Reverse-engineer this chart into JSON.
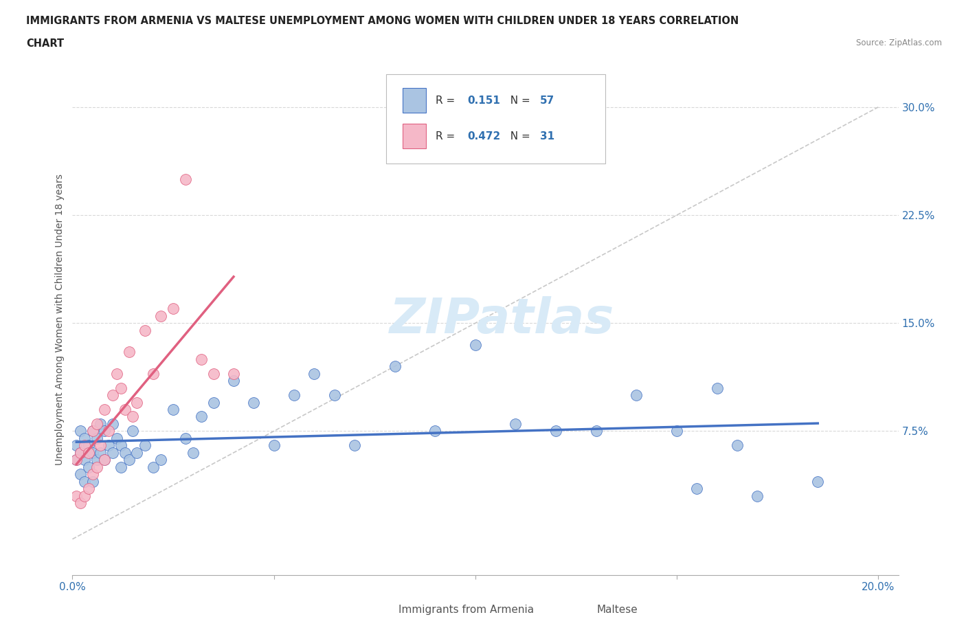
{
  "title_line1": "IMMIGRANTS FROM ARMENIA VS MALTESE UNEMPLOYMENT AMONG WOMEN WITH CHILDREN UNDER 18 YEARS CORRELATION",
  "title_line2": "CHART",
  "source": "Source: ZipAtlas.com",
  "ylabel": "Unemployment Among Women with Children Under 18 years",
  "r_armenia": 0.151,
  "n_armenia": 57,
  "r_maltese": 0.472,
  "n_maltese": 31,
  "color_armenia": "#aac4e2",
  "color_armenia_line": "#4472c4",
  "color_maltese": "#f5b8c8",
  "color_maltese_line": "#e06080",
  "ytick_values": [
    0.0,
    0.075,
    0.15,
    0.225,
    0.3
  ],
  "ytick_labels": [
    "",
    "7.5%",
    "15.0%",
    "22.5%",
    "30.0%"
  ],
  "xtick_values": [
    0.0,
    0.05,
    0.1,
    0.15,
    0.2
  ],
  "xtick_labels": [
    "0.0%",
    "",
    "",
    "",
    "20.0%"
  ],
  "xlim": [
    0.0,
    0.205
  ],
  "ylim": [
    -0.025,
    0.33
  ],
  "armenia_x": [
    0.001,
    0.001,
    0.002,
    0.002,
    0.002,
    0.003,
    0.003,
    0.003,
    0.004,
    0.004,
    0.005,
    0.005,
    0.005,
    0.006,
    0.006,
    0.007,
    0.007,
    0.008,
    0.008,
    0.009,
    0.01,
    0.01,
    0.011,
    0.012,
    0.012,
    0.013,
    0.014,
    0.015,
    0.016,
    0.018,
    0.02,
    0.022,
    0.025,
    0.028,
    0.03,
    0.032,
    0.035,
    0.04,
    0.045,
    0.05,
    0.055,
    0.06,
    0.065,
    0.07,
    0.08,
    0.09,
    0.1,
    0.11,
    0.12,
    0.13,
    0.14,
    0.15,
    0.155,
    0.16,
    0.165,
    0.17,
    0.185
  ],
  "armenia_y": [
    0.065,
    0.055,
    0.075,
    0.06,
    0.045,
    0.07,
    0.055,
    0.04,
    0.065,
    0.05,
    0.075,
    0.06,
    0.04,
    0.07,
    0.055,
    0.08,
    0.06,
    0.075,
    0.055,
    0.065,
    0.08,
    0.06,
    0.07,
    0.065,
    0.05,
    0.06,
    0.055,
    0.075,
    0.06,
    0.065,
    0.05,
    0.055,
    0.09,
    0.07,
    0.06,
    0.085,
    0.095,
    0.11,
    0.095,
    0.065,
    0.1,
    0.115,
    0.1,
    0.065,
    0.12,
    0.075,
    0.135,
    0.08,
    0.075,
    0.075,
    0.1,
    0.075,
    0.035,
    0.105,
    0.065,
    0.03,
    0.04
  ],
  "maltese_x": [
    0.001,
    0.001,
    0.002,
    0.002,
    0.003,
    0.003,
    0.004,
    0.004,
    0.005,
    0.005,
    0.006,
    0.006,
    0.007,
    0.008,
    0.008,
    0.009,
    0.01,
    0.011,
    0.012,
    0.013,
    0.014,
    0.015,
    0.016,
    0.018,
    0.02,
    0.022,
    0.025,
    0.028,
    0.032,
    0.035,
    0.04
  ],
  "maltese_y": [
    0.055,
    0.03,
    0.06,
    0.025,
    0.065,
    0.03,
    0.06,
    0.035,
    0.075,
    0.045,
    0.08,
    0.05,
    0.065,
    0.09,
    0.055,
    0.075,
    0.1,
    0.115,
    0.105,
    0.09,
    0.13,
    0.085,
    0.095,
    0.145,
    0.115,
    0.155,
    0.16,
    0.25,
    0.125,
    0.115,
    0.115
  ],
  "diag_color": "#c8c8c8",
  "watermark_color": "#d8eaf7",
  "background_color": "#ffffff",
  "grid_color": "#d8d8d8"
}
